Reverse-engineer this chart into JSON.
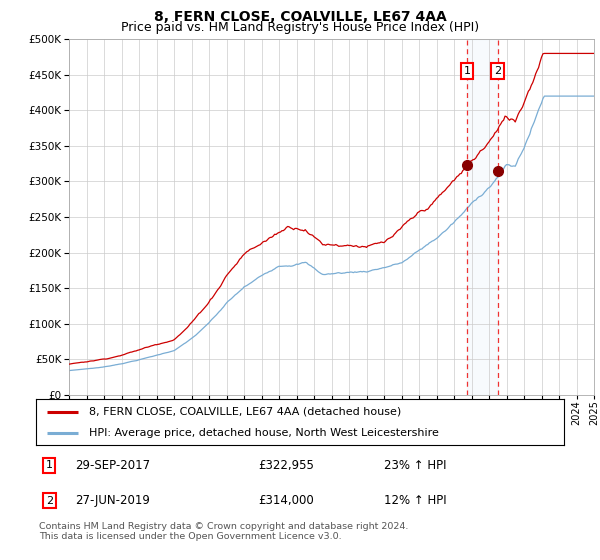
{
  "title": "8, FERN CLOSE, COALVILLE, LE67 4AA",
  "subtitle": "Price paid vs. HM Land Registry's House Price Index (HPI)",
  "ylim": [
    0,
    500000
  ],
  "yticks": [
    0,
    50000,
    100000,
    150000,
    200000,
    250000,
    300000,
    350000,
    400000,
    450000,
    500000
  ],
  "x_start_year": 1995,
  "x_end_year": 2025,
  "hpi_color": "#7aadd4",
  "price_color": "#cc0000",
  "marker_color": "#880000",
  "vline_color": "#ee3333",
  "shade_color": "#d8eaf8",
  "transaction1_date": 2017.75,
  "transaction1_price": 322955,
  "transaction2_date": 2019.5,
  "transaction2_price": 314000,
  "legend_label_red": "8, FERN CLOSE, COALVILLE, LE67 4AA (detached house)",
  "legend_label_blue": "HPI: Average price, detached house, North West Leicestershire",
  "footer": "Contains HM Land Registry data © Crown copyright and database right 2024.\nThis data is licensed under the Open Government Licence v3.0.",
  "background_color": "#ffffff",
  "grid_color": "#cccccc",
  "title_fontsize": 10,
  "subtitle_fontsize": 9
}
